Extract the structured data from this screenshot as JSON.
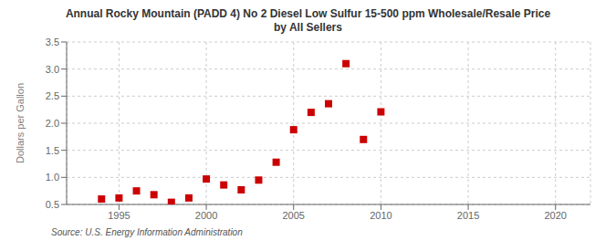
{
  "chart_data": {
    "type": "scatter",
    "title": "Annual Rocky Mountain (PADD 4) No 2 Diesel Low Sulfur 15-500 ppm Wholesale/Resale Price\nby All Sellers",
    "ylabel": "Dollars per Gallon",
    "annotations": [
      "Source: U.S. Energy Information Administration"
    ],
    "x": [
      1994,
      1995,
      1996,
      1997,
      1998,
      1999,
      2000,
      2001,
      2002,
      2003,
      2004,
      2005,
      2006,
      2007,
      2008,
      2009,
      2010
    ],
    "values": [
      0.6,
      0.62,
      0.75,
      0.68,
      0.54,
      0.62,
      0.97,
      0.86,
      0.77,
      0.95,
      1.28,
      1.88,
      2.2,
      2.36,
      3.1,
      1.7,
      2.21
    ],
    "color": "#cc0000",
    "marker": "square",
    "xlim": [
      1992,
      2022
    ],
    "xticks": [
      1995,
      2000,
      2005,
      2010,
      2015,
      2020
    ],
    "ylim": [
      0.5,
      3.5
    ],
    "yticks": [
      0.5,
      {
        "value": 1.0,
        "label": "1.0"
      },
      1.5,
      {
        "value": 2.0,
        "label": "2.0"
      },
      2.5,
      {
        "value": 3.0,
        "label": "3.0"
      },
      3.5
    ],
    "grid": true
  }
}
